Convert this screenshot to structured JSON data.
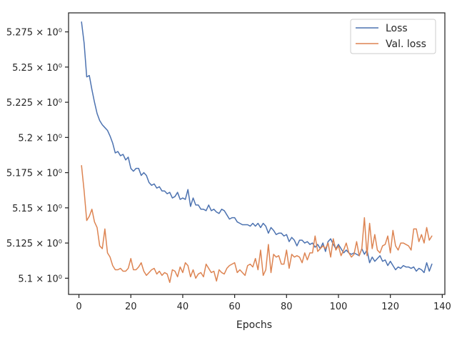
{
  "chart_data": {
    "type": "line",
    "title": "",
    "xlabel": "Epochs",
    "ylabel": "",
    "xlim": [
      -4,
      141
    ],
    "ylim": [
      5.0885,
      5.2885
    ],
    "x_ticks": [
      0,
      20,
      40,
      60,
      80,
      100,
      120,
      140
    ],
    "x_tick_labels": [
      "0",
      "20",
      "40",
      "60",
      "80",
      "100",
      "120",
      "140"
    ],
    "y_ticks": [
      5.1,
      5.125,
      5.15,
      5.175,
      5.2,
      5.225,
      5.25,
      5.275
    ],
    "y_tick_labels": [
      "5.1 × 10⁰",
      "5.125 × 10⁰",
      "5.15 × 10⁰",
      "5.175 × 10⁰",
      "5.2 × 10⁰",
      "5.225 × 10⁰",
      "5.25 × 10⁰",
      "5.275 × 10⁰"
    ],
    "grid": false,
    "legend_position": "top-right",
    "series": [
      {
        "name": "Loss",
        "color": "#4c72b0",
        "x": [
          1,
          2,
          3,
          4,
          5,
          6,
          7,
          8,
          9,
          10,
          11,
          12,
          13,
          14,
          15,
          16,
          17,
          18,
          19,
          20,
          21,
          22,
          23,
          24,
          25,
          26,
          27,
          28,
          29,
          30,
          31,
          32,
          33,
          34,
          35,
          36,
          37,
          38,
          39,
          40,
          41,
          42,
          43,
          44,
          45,
          46,
          47,
          48,
          49,
          50,
          51,
          52,
          53,
          54,
          55,
          56,
          57,
          58,
          59,
          60,
          61,
          62,
          63,
          64,
          65,
          66,
          67,
          68,
          69,
          70,
          71,
          72,
          73,
          74,
          75,
          76,
          77,
          78,
          79,
          80,
          81,
          82,
          83,
          84,
          85,
          86,
          87,
          88,
          89,
          90,
          91,
          92,
          93,
          94,
          95,
          96,
          97,
          98,
          99,
          100,
          101,
          102,
          103,
          104,
          105,
          106,
          107,
          108,
          109,
          110,
          111,
          112,
          113,
          114,
          115,
          116,
          117,
          118,
          119,
          120,
          121,
          122,
          123,
          124,
          125,
          126,
          127,
          128,
          129,
          130,
          131,
          132,
          133,
          134,
          135,
          136
        ],
        "values": [
          5.282,
          5.267,
          5.243,
          5.244,
          5.234,
          5.225,
          5.217,
          5.212,
          5.209,
          5.207,
          5.205,
          5.201,
          5.196,
          5.189,
          5.19,
          5.187,
          5.188,
          5.184,
          5.186,
          5.178,
          5.176,
          5.178,
          5.178,
          5.173,
          5.175,
          5.173,
          5.168,
          5.166,
          5.167,
          5.164,
          5.165,
          5.162,
          5.162,
          5.16,
          5.161,
          5.157,
          5.158,
          5.161,
          5.156,
          5.157,
          5.156,
          5.163,
          5.151,
          5.157,
          5.152,
          5.152,
          5.149,
          5.149,
          5.148,
          5.152,
          5.148,
          5.149,
          5.147,
          5.146,
          5.149,
          5.148,
          5.145,
          5.142,
          5.143,
          5.143,
          5.14,
          5.139,
          5.138,
          5.138,
          5.138,
          5.137,
          5.139,
          5.137,
          5.139,
          5.136,
          5.139,
          5.137,
          5.132,
          5.136,
          5.134,
          5.131,
          5.132,
          5.132,
          5.13,
          5.131,
          5.126,
          5.129,
          5.127,
          5.123,
          5.127,
          5.127,
          5.125,
          5.126,
          5.124,
          5.125,
          5.122,
          5.124,
          5.121,
          5.125,
          5.119,
          5.126,
          5.128,
          5.124,
          5.121,
          5.124,
          5.121,
          5.118,
          5.12,
          5.118,
          5.117,
          5.118,
          5.117,
          5.116,
          5.121,
          5.117,
          5.12,
          5.111,
          5.115,
          5.112,
          5.114,
          5.116,
          5.112,
          5.113,
          5.109,
          5.112,
          5.109,
          5.106,
          5.108,
          5.107,
          5.109,
          5.108,
          5.108,
          5.107,
          5.108,
          5.105,
          5.107,
          5.106,
          5.104,
          5.111,
          5.105,
          5.11
        ]
      },
      {
        "name": "Val. loss",
        "color": "#dd8452",
        "x": [
          1,
          2,
          3,
          4,
          5,
          6,
          7,
          8,
          9,
          10,
          11,
          12,
          13,
          14,
          15,
          16,
          17,
          18,
          19,
          20,
          21,
          22,
          23,
          24,
          25,
          26,
          27,
          28,
          29,
          30,
          31,
          32,
          33,
          34,
          35,
          36,
          37,
          38,
          39,
          40,
          41,
          42,
          43,
          44,
          45,
          46,
          47,
          48,
          49,
          50,
          51,
          52,
          53,
          54,
          55,
          56,
          57,
          58,
          59,
          60,
          61,
          62,
          63,
          64,
          65,
          66,
          67,
          68,
          69,
          70,
          71,
          72,
          73,
          74,
          75,
          76,
          77,
          78,
          79,
          80,
          81,
          82,
          83,
          84,
          85,
          86,
          87,
          88,
          89,
          90,
          91,
          92,
          93,
          94,
          95,
          96,
          97,
          98,
          99,
          100,
          101,
          102,
          103,
          104,
          105,
          106,
          107,
          108,
          109,
          110,
          111,
          112,
          113,
          114,
          115,
          116,
          117,
          118,
          119,
          120,
          121,
          122,
          123,
          124,
          125,
          126,
          127,
          128,
          129,
          130,
          131,
          132,
          133,
          134,
          135,
          136
        ],
        "values": [
          5.18,
          5.162,
          5.141,
          5.144,
          5.149,
          5.14,
          5.136,
          5.123,
          5.121,
          5.135,
          5.118,
          5.115,
          5.109,
          5.106,
          5.106,
          5.107,
          5.105,
          5.105,
          5.107,
          5.114,
          5.106,
          5.106,
          5.108,
          5.111,
          5.105,
          5.102,
          5.104,
          5.106,
          5.107,
          5.103,
          5.105,
          5.102,
          5.104,
          5.103,
          5.097,
          5.106,
          5.105,
          5.101,
          5.108,
          5.104,
          5.111,
          5.109,
          5.101,
          5.106,
          5.1,
          5.103,
          5.104,
          5.101,
          5.11,
          5.107,
          5.104,
          5.105,
          5.098,
          5.106,
          5.104,
          5.103,
          5.107,
          5.109,
          5.11,
          5.111,
          5.104,
          5.106,
          5.104,
          5.102,
          5.109,
          5.11,
          5.108,
          5.114,
          5.106,
          5.12,
          5.102,
          5.106,
          5.124,
          5.104,
          5.117,
          5.115,
          5.116,
          5.11,
          5.11,
          5.12,
          5.107,
          5.117,
          5.115,
          5.116,
          5.115,
          5.111,
          5.118,
          5.113,
          5.118,
          5.118,
          5.13,
          5.119,
          5.121,
          5.123,
          5.121,
          5.125,
          5.115,
          5.128,
          5.12,
          5.123,
          5.116,
          5.12,
          5.125,
          5.118,
          5.115,
          5.117,
          5.126,
          5.116,
          5.121,
          5.143,
          5.116,
          5.139,
          5.121,
          5.131,
          5.12,
          5.118,
          5.123,
          5.124,
          5.13,
          5.118,
          5.134,
          5.123,
          5.12,
          5.125,
          5.125,
          5.124,
          5.123,
          5.12,
          5.135,
          5.135,
          5.126,
          5.131,
          5.125,
          5.136,
          5.127,
          5.13
        ]
      }
    ]
  }
}
